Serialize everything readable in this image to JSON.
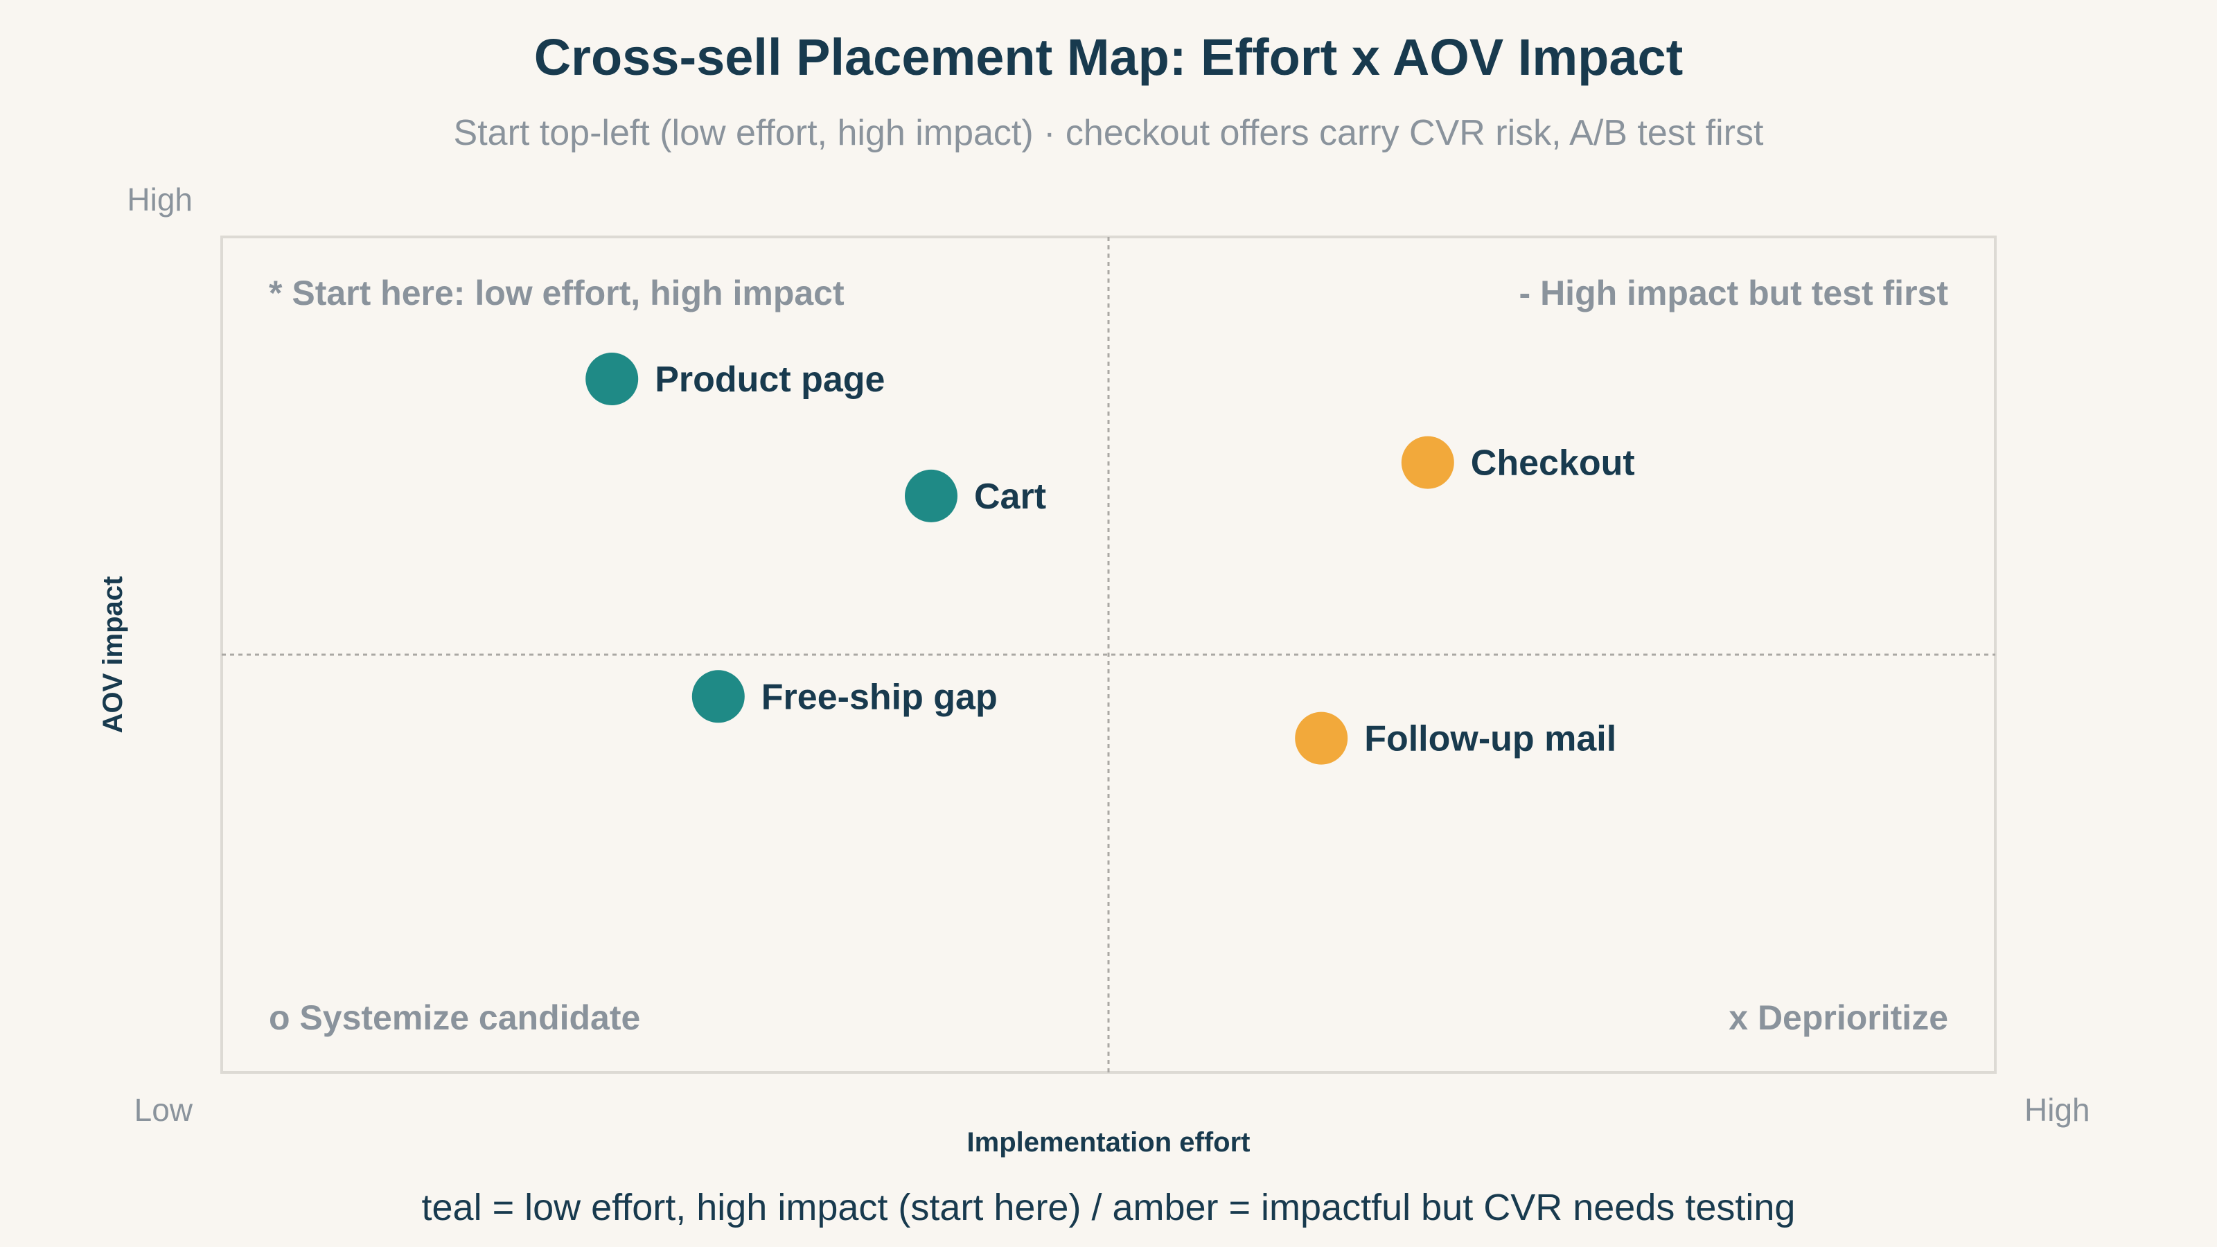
{
  "chart_data": {
    "type": "scatter",
    "title": "Cross-sell Placement Map: Effort x AOV Impact",
    "subtitle": "Start top-left (low effort, high impact) · checkout offers carry CVR risk, A/B test first",
    "xlabel": "Implementation effort",
    "ylabel": "AOV impact",
    "xlim": [
      0,
      10
    ],
    "ylim": [
      0,
      10
    ],
    "x_tick_labels": {
      "low": "Low",
      "high": "High"
    },
    "y_tick_labels": {
      "low": "Low",
      "high": "High"
    },
    "grid": false,
    "dividers": {
      "x": 5,
      "y": 5
    },
    "quadrants": {
      "top_left": "* Start here: low effort, high impact",
      "top_right": "- High impact but test first",
      "bottom_left": "o Systemize candidate",
      "bottom_right": "x Deprioritize"
    },
    "colors": {
      "teal": "#1f8a86",
      "amber": "#f2a93b"
    },
    "points": [
      {
        "label": "Product page",
        "x": 2.2,
        "y": 8.3,
        "color": "teal"
      },
      {
        "label": "Cart",
        "x": 4.0,
        "y": 6.9,
        "color": "teal"
      },
      {
        "label": "Free-ship gap",
        "x": 2.8,
        "y": 4.5,
        "color": "teal"
      },
      {
        "label": "Checkout",
        "x": 6.8,
        "y": 7.3,
        "color": "amber"
      },
      {
        "label": "Follow-up mail",
        "x": 6.2,
        "y": 4.0,
        "color": "amber"
      }
    ],
    "footnote": "teal = low effort, high impact (start here) / amber = impactful but CVR needs testing"
  }
}
